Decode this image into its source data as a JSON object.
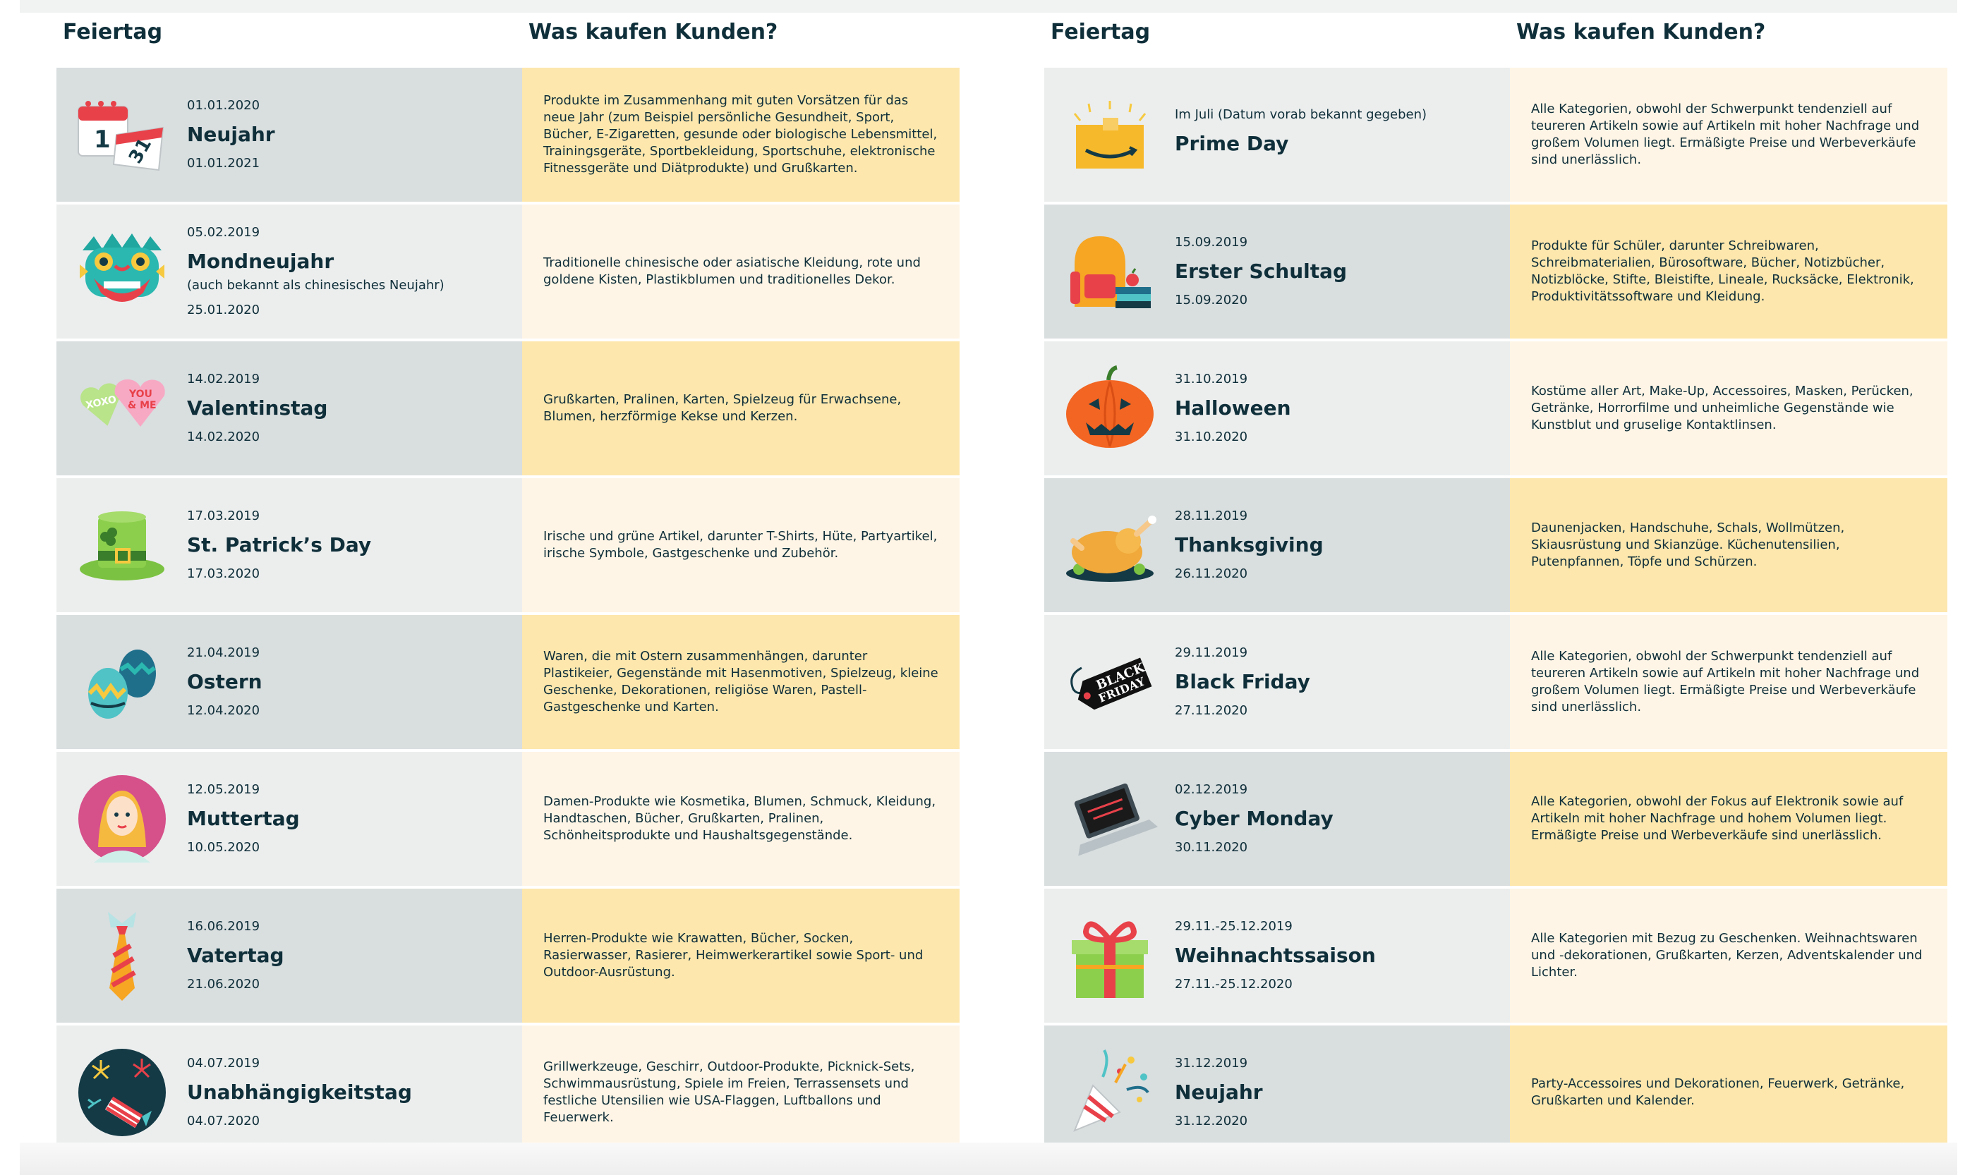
{
  "headers": {
    "holiday": "Feiertag",
    "buy": "Was kaufen Kunden?"
  },
  "left": [
    {
      "icon": "calendar-icon",
      "date1": "01.01.2020",
      "title": "Neujahr",
      "date2": "01.01.2021",
      "desc": "Produkte im Zusammenhang mit guten Vorsätzen für das neue Jahr (zum Beispiel persönliche Gesundheit, Sport, Bücher, E-Zigaretten, gesunde oder biologische Lebensmittel, Trainingsgeräte, Sportbekleidung, Sportschuhe, elektronische Fitnessgeräte und Diätprodukte) und Grußkarten."
    },
    {
      "icon": "dragon-mask-icon",
      "date1": "05.02.2019",
      "title": "Mondneujahr",
      "note": "(auch bekannt als chinesisches Neujahr)",
      "date2": "25.01.2020",
      "desc": "Traditionelle chinesische oder asiatische Kleidung, rote und goldene Kisten, Plastikblumen und traditionelles Dekor."
    },
    {
      "icon": "candy-hearts-icon",
      "date1": "14.02.2019",
      "title": "Valentinstag",
      "date2": "14.02.2020",
      "desc": "Grußkarten, Pralinen, Karten, Spielzeug für Erwachsene, Blumen, herzförmige Kekse und Kerzen."
    },
    {
      "icon": "leprechaun-hat-icon",
      "date1": "17.03.2019",
      "title": "St. Patrick’s Day",
      "date2": "17.03.2020",
      "desc": "Irische und grüne Artikel, darunter T-Shirts, Hüte, Partyartikel, irische Symbole, Gastgeschenke und Zubehör."
    },
    {
      "icon": "easter-eggs-icon",
      "date1": "21.04.2019",
      "title": "Ostern",
      "date2": "12.04.2020",
      "desc": "Waren, die mit Ostern zusammenhängen, darunter Plastikeier, Gegenstände mit Hasenmotiven, Spielzeug, kleine Geschenke, Dekorationen, religiöse Waren, Pastell-Gastgeschenke und Karten."
    },
    {
      "icon": "mother-portrait-icon",
      "date1": "12.05.2019",
      "title": "Muttertag",
      "date2": "10.05.2020",
      "desc": "Damen-Produkte wie Kosmetika, Blumen, Schmuck, Kleidung, Handtaschen, Bücher, Grußkarten, Pralinen, Schönheitsprodukte und Haushaltsgegenstände."
    },
    {
      "icon": "necktie-icon",
      "date1": "16.06.2019",
      "title": "Vatertag",
      "date2": "21.06.2020",
      "desc": "Herren-Produkte wie Krawatten, Bücher, Socken, Rasierwasser, Rasierer, Heimwerkerartikel sowie Sport- und Outdoor-Ausrüstung."
    },
    {
      "icon": "fireworks-icon",
      "date1": "04.07.2019",
      "title": "Unabhängigkeitstag",
      "date2": "04.07.2020",
      "desc": "Grillwerkzeuge, Geschirr, Outdoor-Produkte, Picknick-Sets, Schwimmausrüstung, Spiele im Freien, Terrassensets und festliche Utensilien wie USA-Flaggen, Luftballons und Feuerwerk."
    }
  ],
  "right": [
    {
      "icon": "amazon-box-icon",
      "pre": "Im Juli (Datum vorab bekannt gegeben)",
      "title": "Prime Day",
      "desc": "Alle Kategorien, obwohl der Schwerpunkt tendenziell auf teureren Artikeln sowie auf Artikeln mit hoher Nachfrage und großem Volumen liegt. Ermäßigte Preise und Werbeverkäufe sind unerlässlich."
    },
    {
      "icon": "school-backpack-icon",
      "date1": "15.09.2019",
      "title": "Erster Schultag",
      "date2": "15.09.2020",
      "desc": "Produkte für Schüler, darunter Schreibwaren, Schreibmaterialien, Bürosoftware, Bücher, Notizbücher, Notizblöcke, Stifte, Bleistifte, Lineale, Rucksäcke, Elektronik, Produktivitätssoftware und Kleidung."
    },
    {
      "icon": "pumpkin-icon",
      "date1": "31.10.2019",
      "title": "Halloween",
      "date2": "31.10.2020",
      "desc": "Kostüme aller Art, Make-Up, Accessoires, Masken, Perücken, Getränke, Horrorfilme und unheimliche Gegenstände wie Kunstblut und gruselige Kontaktlinsen."
    },
    {
      "icon": "roast-turkey-icon",
      "date1": "28.11.2019",
      "title": "Thanksgiving",
      "date2": "26.11.2020",
      "desc": "Daunenjacken, Handschuhe, Schals, Wollmützen, Skiausrüstung und Skianzüge. Küchenutensilien, Putenpfannen, Töpfe und Schürzen."
    },
    {
      "icon": "black-friday-tag-icon",
      "date1": "29.11.2019",
      "title": "Black Friday",
      "date2": "27.11.2020",
      "tag_line1": "BLACK",
      "tag_line2": "FRIDAY",
      "desc": "Alle Kategorien, obwohl der Schwerpunkt tendenziell auf teureren Artikeln sowie auf Artikeln mit hoher Nachfrage und großem Volumen liegt. Ermäßigte Preise und Werbeverkäufe sind unerlässlich."
    },
    {
      "icon": "laptop-icon",
      "date1": "02.12.2019",
      "title": "Cyber Monday",
      "date2": "30.11.2020",
      "desc": "Alle Kategorien, obwohl der Fokus auf Elektronik sowie auf Artikeln mit hoher Nachfrage und hohem Volumen liegt. Ermäßigte Preise und Werbeverkäufe sind unerlässlich."
    },
    {
      "icon": "gift-box-icon",
      "date1": "29.11.-25.12.2019",
      "title": "Weihnachtssaison",
      "date2": "27.11.-25.12.2020",
      "desc": "Alle Kategorien mit Bezug zu Geschenken. Weihnachtswaren und -dekorationen, Grußkarten, Kerzen, Adventskalender und Lichter."
    },
    {
      "icon": "party-popper-icon",
      "date1": "31.12.2019",
      "title": "Neujahr",
      "date2": "31.12.2020",
      "desc": "Party-Accessoires und Dekorationen, Feuerwerk, Getränke, Grußkarten und Kalender."
    }
  ],
  "calendar": {
    "day1": "1",
    "day2": "31"
  },
  "candy": {
    "word1": "XOXO",
    "word2a": "YOU",
    "word2b": "& ME"
  },
  "colors": {
    "row_gray_dark": "#d9dedf",
    "row_gray_light": "#eceeee",
    "row_yellow": "#fde7ad",
    "row_cream": "#fff5e6",
    "text": "#0f2f3a"
  }
}
